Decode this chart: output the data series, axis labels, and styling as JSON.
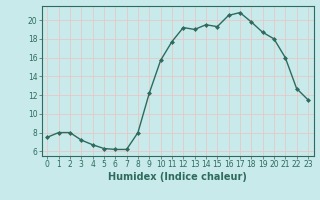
{
  "x": [
    0,
    1,
    2,
    3,
    4,
    5,
    6,
    7,
    8,
    9,
    10,
    11,
    12,
    13,
    14,
    15,
    16,
    17,
    18,
    19,
    20,
    21,
    22,
    23
  ],
  "y": [
    7.5,
    8.0,
    8.0,
    7.2,
    6.7,
    6.3,
    6.2,
    6.2,
    8.0,
    12.2,
    15.7,
    17.7,
    19.2,
    19.0,
    19.5,
    19.3,
    20.5,
    20.8,
    19.8,
    18.7,
    18.0,
    16.0,
    12.7,
    11.5
  ],
  "line_color": "#2e6b5e",
  "marker": "D",
  "marker_size": 2.0,
  "bg_color": "#c8eaea",
  "grid_color": "#e8c8c8",
  "xlabel": "Humidex (Indice chaleur)",
  "xlim": [
    -0.5,
    23.5
  ],
  "ylim": [
    5.5,
    21.5
  ],
  "yticks": [
    6,
    8,
    10,
    12,
    14,
    16,
    18,
    20
  ],
  "xticks": [
    0,
    1,
    2,
    3,
    4,
    5,
    6,
    7,
    8,
    9,
    10,
    11,
    12,
    13,
    14,
    15,
    16,
    17,
    18,
    19,
    20,
    21,
    22,
    23
  ],
  "tick_color": "#2e6b5e",
  "label_fontsize": 7,
  "tick_fontsize": 5.5,
  "spine_color": "#2e6b5e",
  "linewidth": 1.0
}
